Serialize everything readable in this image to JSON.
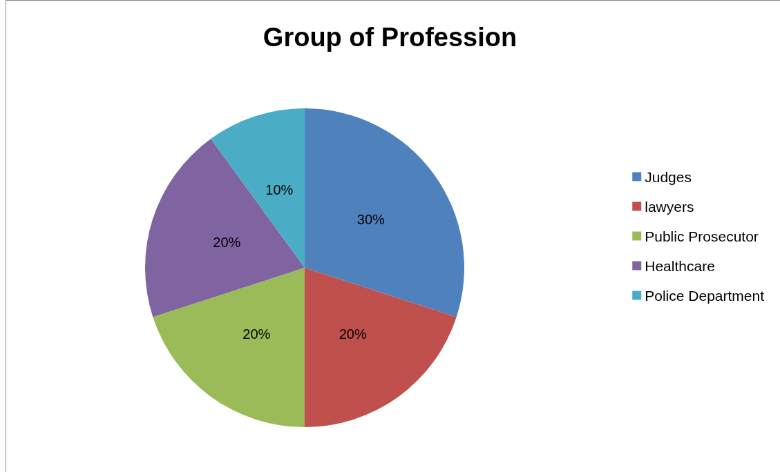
{
  "chart_data": {
    "type": "pie",
    "title": "Group of Profession",
    "categories": [
      "Judges",
      "lawyers",
      "Public Prosecutor",
      "Healthcare",
      "Police Department"
    ],
    "values": [
      30,
      20,
      20,
      20,
      10
    ],
    "colors": [
      "#4f81bd",
      "#c0504d",
      "#9bbb59",
      "#8064a2",
      "#4bacc6"
    ],
    "value_labels": [
      "30%",
      "20%",
      "20%",
      "20%",
      "10%"
    ],
    "legend": "right"
  }
}
